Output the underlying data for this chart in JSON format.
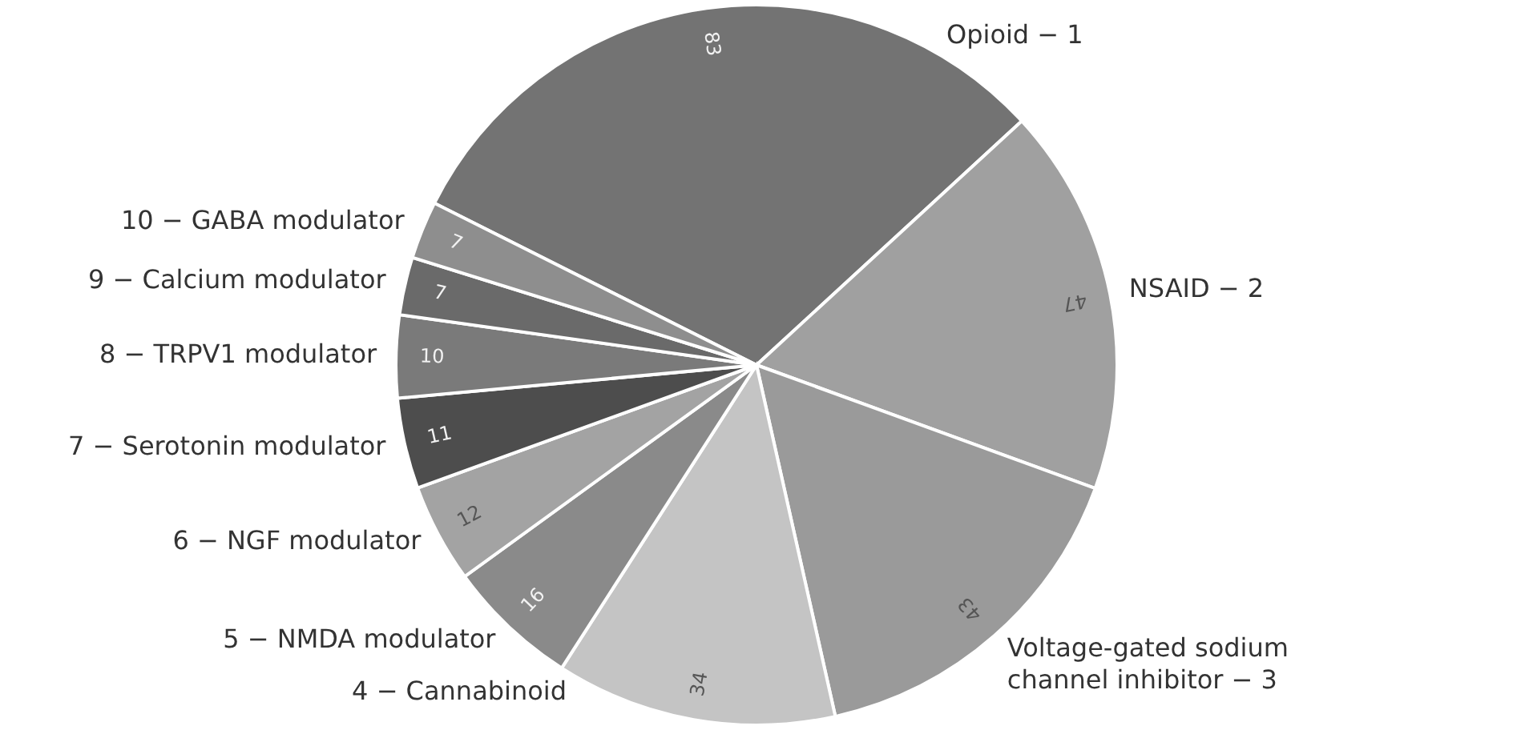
{
  "chart_data": {
    "type": "pie",
    "categories": [
      "Opioid − 1",
      "NSAID − 2",
      "Voltage-gated sodium channel inhibitor − 3",
      "4 − Cannabinoid",
      "5 − NMDA modulator",
      "6 − NGF modulator",
      "7 − Serotonin modulator",
      "8 − TRPV1 modulator",
      "9 − Calcium modulator",
      "10 − GABA modulator"
    ],
    "values": [
      83,
      47,
      43,
      34,
      16,
      12,
      11,
      10,
      7,
      7
    ],
    "colors": [
      "#737373",
      "#a0a0a0",
      "#9a9a9a",
      "#c4c4c4",
      "#8a8a8a",
      "#a3a3a3",
      "#4d4d4d",
      "#7a7a7a",
      "#6a6a6a",
      "#8e8e8e"
    ],
    "data_labels": true
  }
}
